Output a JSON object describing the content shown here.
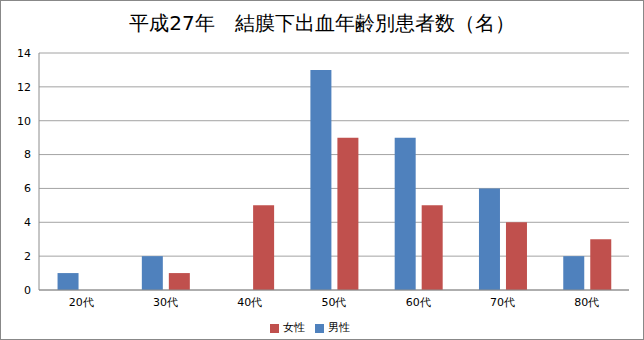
{
  "chart_data": {
    "type": "bar",
    "title": "平成27年　結膜下出血年齢別患者数（名）",
    "categories": [
      "20代",
      "30代",
      "40代",
      "50代",
      "60代",
      "70代",
      "80代"
    ],
    "series": [
      {
        "name": "男性",
        "color": "#4f81bd",
        "values": [
          1,
          2,
          0,
          13,
          9,
          6,
          2
        ]
      },
      {
        "name": "女性",
        "color": "#c0504d",
        "values": [
          0,
          1,
          5,
          9,
          5,
          4,
          3
        ]
      }
    ],
    "ylim": [
      0,
      14
    ],
    "yticks": [
      0,
      2,
      4,
      6,
      8,
      10,
      12,
      14
    ],
    "grid": true,
    "legend": "bottom"
  }
}
